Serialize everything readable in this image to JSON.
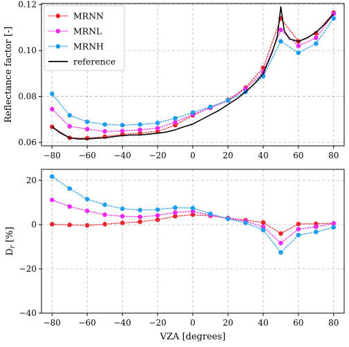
{
  "chart_data": [
    {
      "type": "line",
      "xlabel": "",
      "ylabel": "Reflectance factor [-]",
      "xlim": [
        -86,
        86
      ],
      "ylim": [
        0.0585,
        0.1205
      ],
      "xticks": [
        -80,
        -60,
        -40,
        -20,
        0,
        20,
        40,
        60,
        80
      ],
      "xtick_labels": [
        "−80",
        "−60",
        "−40",
        "−20",
        "0",
        "20",
        "40",
        "60",
        "80"
      ],
      "yticks": [
        0.06,
        0.08,
        0.1,
        0.12
      ],
      "ytick_labels": [
        "0.06",
        "0.08",
        "0.10",
        "0.12"
      ],
      "grid": true,
      "legend_position": "top-left",
      "series": [
        {
          "name": "MRNN",
          "color": "#e8252a",
          "style": "dotted-markers",
          "x": [
            -80,
            -70,
            -60,
            -50,
            -40,
            -30,
            -20,
            -10,
            0,
            10,
            20,
            30,
            40,
            50,
            60,
            70,
            80
          ],
          "y": [
            0.0668,
            0.062,
            0.0618,
            0.0625,
            0.0635,
            0.064,
            0.0648,
            0.0675,
            0.0718,
            0.0752,
            0.0785,
            0.0838,
            0.0925,
            0.114,
            0.104,
            0.1075,
            0.1165
          ]
        },
        {
          "name": "MRNL",
          "color": "#ee2bee",
          "style": "dotted-markers",
          "x": [
            -80,
            -70,
            -60,
            -50,
            -40,
            -30,
            -20,
            -10,
            0,
            10,
            20,
            30,
            40,
            50,
            60,
            70,
            80
          ],
          "y": [
            0.0745,
            0.067,
            0.0658,
            0.0648,
            0.065,
            0.0655,
            0.0662,
            0.0688,
            0.0722,
            0.075,
            0.0782,
            0.0833,
            0.0905,
            0.109,
            0.102,
            0.1055,
            0.116
          ]
        },
        {
          "name": "MRNH",
          "color": "#1f9cec",
          "style": "dotted-markers",
          "x": [
            -80,
            -70,
            -60,
            -50,
            -40,
            -30,
            -20,
            -10,
            0,
            10,
            20,
            30,
            40,
            50,
            60,
            70,
            80
          ],
          "y": [
            0.0812,
            0.0718,
            0.069,
            0.0678,
            0.0675,
            0.0678,
            0.0685,
            0.0705,
            0.073,
            0.0755,
            0.0783,
            0.082,
            0.0888,
            0.104,
            0.099,
            0.103,
            0.114
          ]
        },
        {
          "name": "reference",
          "color": "#000000",
          "style": "solid",
          "x": [
            -80,
            -75,
            -70,
            -65,
            -60,
            -55,
            -50,
            -45,
            -40,
            -35,
            -30,
            -25,
            -20,
            -15,
            -10,
            -5,
            0,
            5,
            10,
            15,
            20,
            25,
            30,
            35,
            40,
            45,
            48,
            50,
            52,
            55,
            60,
            65,
            70,
            75,
            80
          ],
          "y": [
            0.0668,
            0.064,
            0.062,
            0.0615,
            0.0615,
            0.0618,
            0.062,
            0.0625,
            0.063,
            0.0632,
            0.0632,
            0.0636,
            0.064,
            0.0645,
            0.0655,
            0.0668,
            0.068,
            0.07,
            0.072,
            0.074,
            0.0765,
            0.079,
            0.082,
            0.0855,
            0.09,
            0.099,
            0.106,
            0.119,
            0.1085,
            0.105,
            0.104,
            0.1055,
            0.108,
            0.1115,
            0.116
          ]
        }
      ]
    },
    {
      "type": "line",
      "xlabel": "VZA [degrees]",
      "ylabel": "D",
      "ylabel_subscript": "r",
      "ylabel_unit": " [%]",
      "xlim": [
        -86,
        86
      ],
      "ylim": [
        -40,
        25
      ],
      "xticks": [
        -80,
        -60,
        -40,
        -20,
        0,
        20,
        40,
        60,
        80
      ],
      "xtick_labels": [
        "−80",
        "−60",
        "−40",
        "−20",
        "0",
        "20",
        "40",
        "60",
        "80"
      ],
      "yticks": [
        -40,
        -20,
        0,
        20
      ],
      "ytick_labels": [
        "−40",
        "−20",
        "0",
        "20"
      ],
      "grid": true,
      "series": [
        {
          "color": "#e8252a",
          "style": "dotted-markers",
          "x": [
            -80,
            -70,
            -60,
            -50,
            -40,
            -30,
            -20,
            -10,
            0,
            10,
            20,
            30,
            40,
            50,
            60,
            70,
            80
          ],
          "y": [
            0.2,
            -0.1,
            -0.3,
            0.2,
            0.8,
            1.3,
            2.2,
            3.8,
            4.5,
            4.0,
            3.0,
            2.0,
            1.0,
            -4.0,
            0.3,
            0.4,
            0.6
          ]
        },
        {
          "color": "#ee2bee",
          "style": "dotted-markers",
          "x": [
            -80,
            -70,
            -60,
            -50,
            -40,
            -30,
            -20,
            -10,
            0,
            10,
            20,
            30,
            40,
            50,
            60,
            70,
            80
          ],
          "y": [
            11.2,
            8.2,
            6.2,
            4.5,
            3.8,
            3.5,
            4.2,
            5.5,
            6.0,
            4.3,
            2.8,
            1.5,
            -1.0,
            -8.3,
            -2.0,
            -1.0,
            0.5
          ]
        },
        {
          "color": "#1f9cec",
          "style": "dotted-markers",
          "x": [
            -80,
            -70,
            -60,
            -50,
            -40,
            -30,
            -20,
            -10,
            0,
            10,
            20,
            30,
            40,
            50,
            60,
            70,
            80
          ],
          "y": [
            21.8,
            16.3,
            11.5,
            9.0,
            7.2,
            6.6,
            6.8,
            7.7,
            7.5,
            4.9,
            2.6,
            0.8,
            -2.4,
            -12.6,
            -4.7,
            -3.3,
            -1.2
          ]
        }
      ]
    }
  ]
}
